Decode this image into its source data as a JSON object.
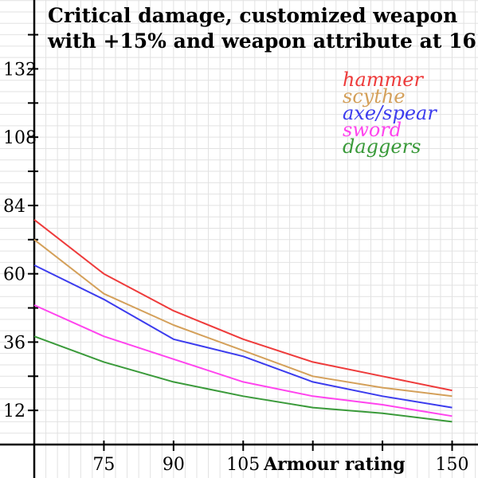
{
  "chart_data": {
    "type": "line",
    "title_lines": [
      "Critical damage, customized weapon",
      "with +15% and weapon attribute at 16"
    ],
    "xlabel": "Armour rating",
    "ylabel": "",
    "x": [
      60,
      75,
      90,
      105,
      120,
      135,
      150
    ],
    "xlim": [
      60,
      153
    ],
    "ylim": [
      0,
      145
    ],
    "x_ticks": [
      75,
      90,
      105,
      150
    ],
    "y_ticks": [
      12,
      36,
      60,
      84,
      108,
      132
    ],
    "grid": true,
    "legend_position": "top-right",
    "series": [
      {
        "name": "hammer",
        "color": "#ee3b3b",
        "values": [
          79,
          60,
          47,
          37,
          29,
          24,
          19
        ]
      },
      {
        "name": "scythe",
        "color": "#d4a05a",
        "values": [
          72,
          53,
          42,
          33,
          24,
          20,
          17
        ]
      },
      {
        "name": "axe/spear",
        "color": "#3c3cee",
        "values": [
          63,
          51,
          37,
          31,
          22,
          17,
          13
        ]
      },
      {
        "name": "sword",
        "color": "#ff44ee",
        "values": [
          49,
          38,
          30,
          22,
          17,
          14,
          10
        ]
      },
      {
        "name": "daggers",
        "color": "#3a9a3a",
        "values": [
          38,
          29,
          22,
          17,
          13,
          11,
          8
        ]
      }
    ]
  }
}
